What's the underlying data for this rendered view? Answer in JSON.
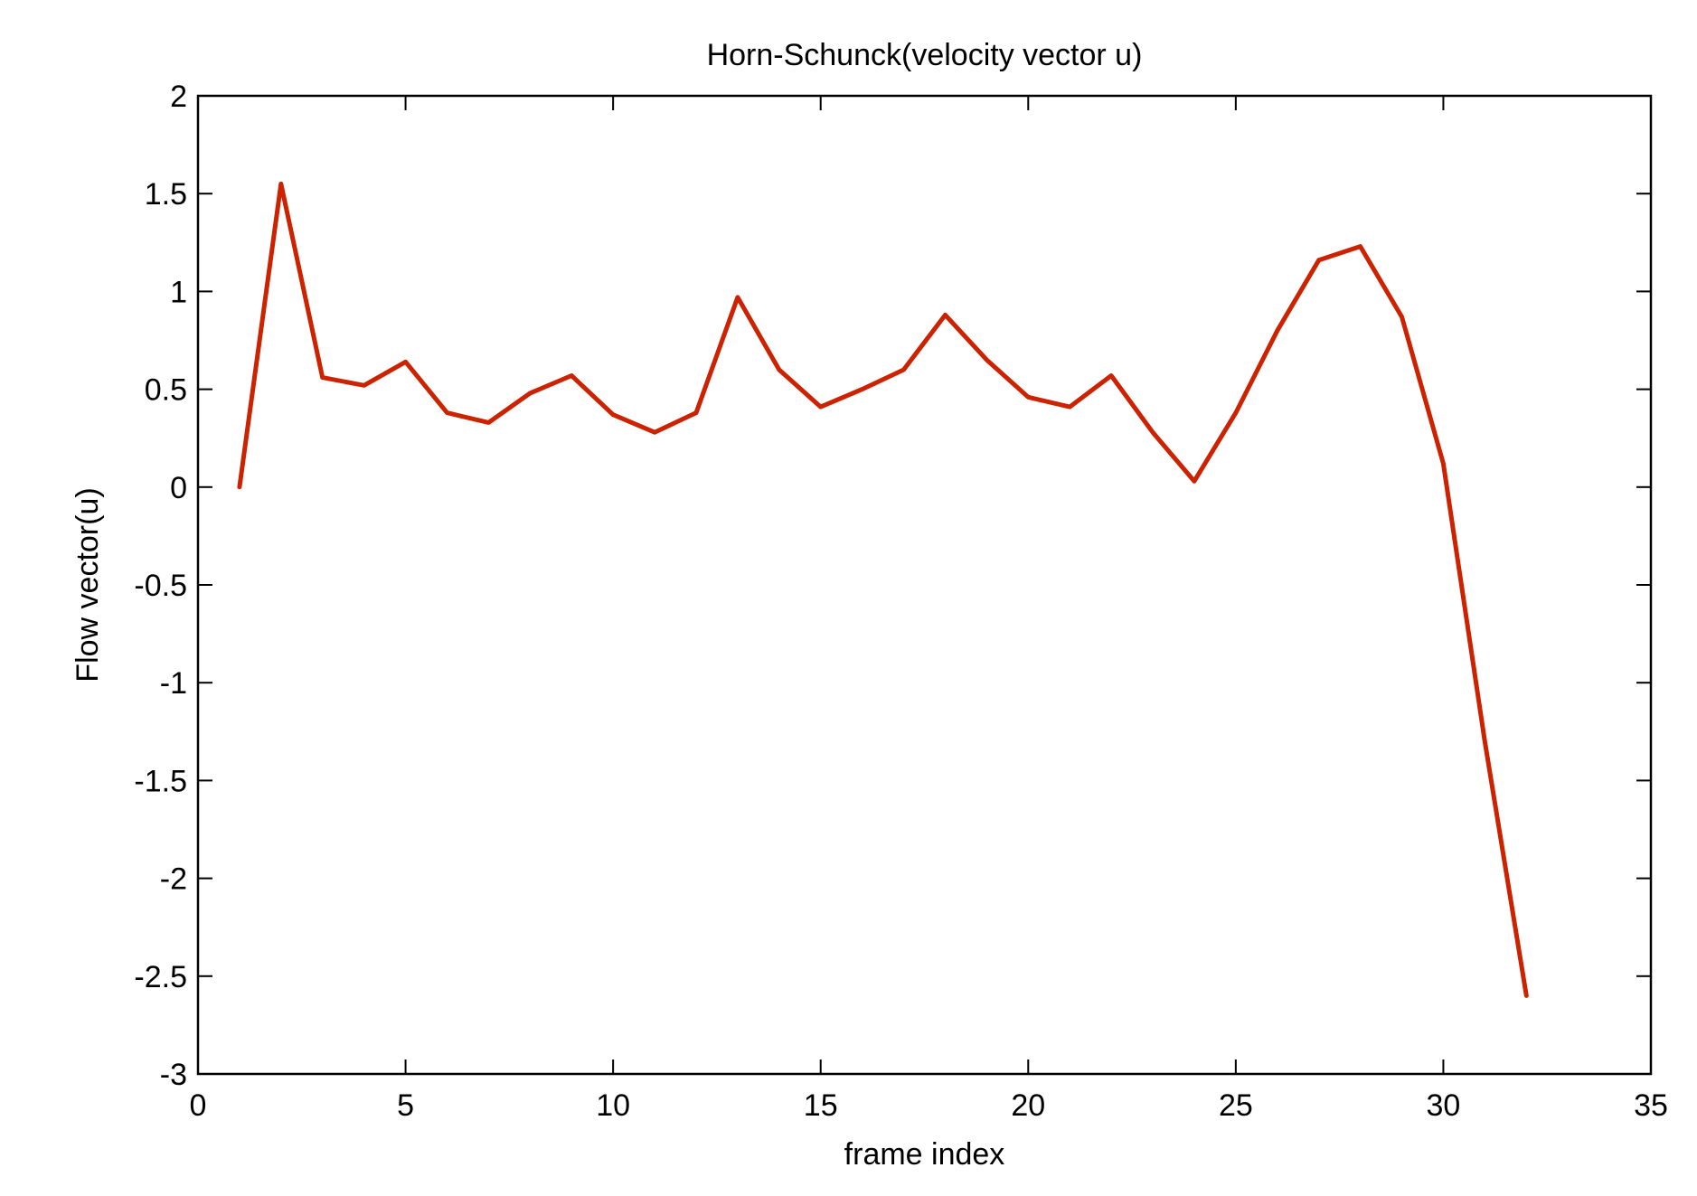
{
  "chart_data": {
    "type": "line",
    "title": "Horn-Schunck(velocity vector u)",
    "xlabel": "frame index",
    "ylabel": "Flow vector(u)",
    "xlim": [
      0,
      35
    ],
    "ylim": [
      -3,
      2
    ],
    "xticks": [
      0,
      5,
      10,
      15,
      20,
      25,
      30,
      35
    ],
    "xtick_labels": [
      "0",
      "5",
      "10",
      "15",
      "20",
      "25",
      "30",
      "35"
    ],
    "yticks": [
      -3,
      -2.5,
      -2,
      -1.5,
      -1,
      -0.5,
      0,
      0.5,
      1,
      1.5,
      2
    ],
    "ytick_labels": [
      "-3",
      "-2.5",
      "-2",
      "-1.5",
      "-1",
      "-0.5",
      "0",
      "0.5",
      "1",
      "1.5",
      "2"
    ],
    "grid": false,
    "legend": "none",
    "series": [
      {
        "color": "#cc2200",
        "x": [
          1,
          2,
          3,
          4,
          5,
          6,
          7,
          8,
          9,
          10,
          11,
          12,
          13,
          14,
          15,
          16,
          17,
          18,
          19,
          20,
          21,
          22,
          23,
          24,
          25,
          26,
          27,
          28,
          29,
          30,
          31,
          32
        ],
        "y": [
          0.0,
          1.55,
          0.56,
          0.52,
          0.64,
          0.38,
          0.33,
          0.48,
          0.57,
          0.37,
          0.28,
          0.38,
          0.97,
          0.6,
          0.41,
          0.5,
          0.6,
          0.88,
          0.65,
          0.46,
          0.41,
          0.57,
          0.28,
          0.03,
          0.38,
          0.8,
          1.16,
          1.23,
          0.87,
          0.12,
          -1.3,
          -2.6
        ]
      }
    ]
  }
}
